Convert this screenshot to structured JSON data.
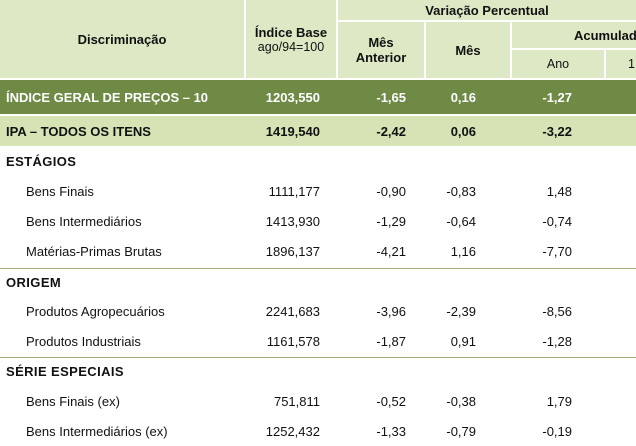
{
  "header": {
    "col_discriminacao": "Discriminação",
    "col_indice_line1": "Índice Base",
    "col_indice_line2": "ago/94=100",
    "variacao": "Variação Percentual",
    "mes_anterior_line1": "Mês",
    "mes_anterior_line2": "Anterior",
    "mes": "Mês",
    "acumulado": "Acumulad",
    "ano": "Ano",
    "doze": "1"
  },
  "main_row": {
    "label": "ÍNDICE GERAL DE PREÇOS – 10",
    "indice": "1203,550",
    "mes_anterior": "-1,65",
    "mes": "0,16",
    "ano": "-1,27"
  },
  "ipa_row": {
    "label": "IPA – TODOS OS ITENS",
    "indice": "1419,540",
    "mes_anterior": "-2,42",
    "mes": "0,06",
    "ano": "-3,22"
  },
  "sections": [
    {
      "title": "ESTÁGIOS",
      "rows": [
        {
          "label": "Bens Finais",
          "indice": "1111,177",
          "mes_anterior": "-0,90",
          "mes": "-0,83",
          "ano": "1,48"
        },
        {
          "label": "Bens Intermediários",
          "indice": "1413,930",
          "mes_anterior": "-1,29",
          "mes": "-0,64",
          "ano": "-0,74"
        },
        {
          "label": "Matérias-Primas Brutas",
          "indice": "1896,137",
          "mes_anterior": "-4,21",
          "mes": "1,16",
          "ano": "-7,70"
        }
      ]
    },
    {
      "title": "ORIGEM",
      "rows": [
        {
          "label": "Produtos Agropecuários",
          "indice": "2241,683",
          "mes_anterior": "-3,96",
          "mes": "-2,39",
          "ano": "-8,56"
        },
        {
          "label": "Produtos Industriais",
          "indice": "1161,578",
          "mes_anterior": "-1,87",
          "mes": "0,91",
          "ano": "-1,28"
        }
      ]
    },
    {
      "title": "SÉRIE ESPECIAIS",
      "rows": [
        {
          "label": "Bens Finais (ex)",
          "indice": "751,811",
          "mes_anterior": "-0,52",
          "mes": "-0,38",
          "ano": "1,79"
        },
        {
          "label": "Bens Intermediários (ex)",
          "indice": "1252,432",
          "mes_anterior": "-1,33",
          "mes": "-0,79",
          "ano": "-0,19"
        }
      ]
    }
  ]
}
